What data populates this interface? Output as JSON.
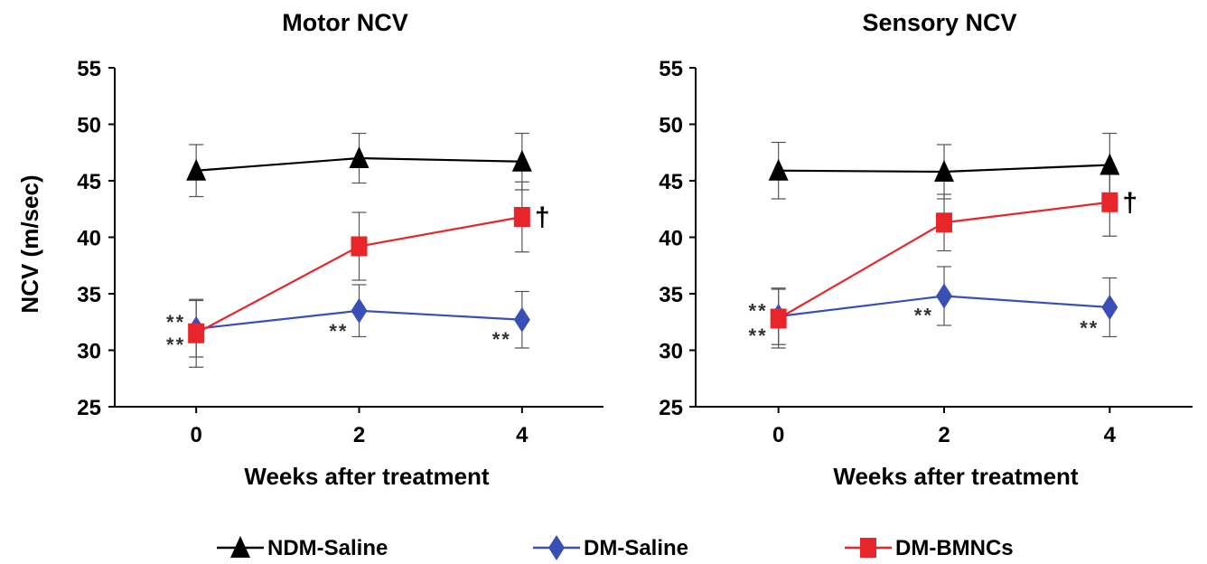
{
  "chart_data": [
    {
      "type": "line",
      "title": "Motor NCV",
      "xlabel": "Weeks after treatment",
      "ylabel": "NCV (m/sec)",
      "x": [
        0,
        2,
        4
      ],
      "xlim": [
        -1,
        5
      ],
      "ylim": [
        25,
        55
      ],
      "yticks": [
        25,
        30,
        35,
        40,
        45,
        50,
        55
      ],
      "xticks": [
        0,
        2,
        4
      ],
      "series": [
        {
          "name": "NDM-Saline",
          "color": "#000000",
          "marker": "triangle",
          "values": [
            45.9,
            47.0,
            46.7
          ],
          "error": [
            2.3,
            2.2,
            2.5
          ]
        },
        {
          "name": "DM-Saline",
          "color": "#3a4fb5",
          "marker": "diamond",
          "values": [
            31.9,
            33.5,
            32.7
          ],
          "error": [
            2.5,
            2.3,
            2.5
          ]
        },
        {
          "name": "DM-BMNCs",
          "color": "#e8252a",
          "marker": "square",
          "values": [
            31.5,
            39.2,
            41.8
          ],
          "error": [
            3.0,
            3.0,
            3.1
          ]
        }
      ],
      "annotations": [
        {
          "text": "**",
          "x": 0,
          "y": 33.0
        },
        {
          "text": "**",
          "x": 0,
          "y": 31.0
        },
        {
          "text": "**",
          "x": 2,
          "y": 32.2
        },
        {
          "text": "**",
          "x": 4,
          "y": 31.5
        },
        {
          "text": "†",
          "x": 4,
          "y": 41.8
        }
      ]
    },
    {
      "type": "line",
      "title": "Sensory NCV",
      "xlabel": "Weeks after treatment",
      "ylabel": "",
      "x": [
        0,
        2,
        4
      ],
      "xlim": [
        -1,
        5
      ],
      "ylim": [
        25,
        55
      ],
      "yticks": [
        25,
        30,
        35,
        40,
        45,
        50,
        55
      ],
      "xticks": [
        0,
        2,
        4
      ],
      "series": [
        {
          "name": "NDM-Saline",
          "color": "#000000",
          "marker": "triangle",
          "values": [
            45.9,
            45.8,
            46.4
          ],
          "error": [
            2.5,
            2.4,
            2.8
          ]
        },
        {
          "name": "DM-Saline",
          "color": "#3a4fb5",
          "marker": "diamond",
          "values": [
            33.0,
            34.8,
            33.8
          ],
          "error": [
            2.5,
            2.6,
            2.6
          ]
        },
        {
          "name": "DM-BMNCs",
          "color": "#e8252a",
          "marker": "square",
          "values": [
            32.8,
            41.3,
            43.1
          ],
          "error": [
            2.6,
            2.5,
            3.0
          ]
        }
      ],
      "annotations": [
        {
          "text": "**",
          "x": 0,
          "y": 34.0
        },
        {
          "text": "**",
          "x": 0,
          "y": 31.8
        },
        {
          "text": "**",
          "x": 2,
          "y": 33.6
        },
        {
          "text": "**",
          "x": 4,
          "y": 32.5
        },
        {
          "text": "†",
          "x": 4,
          "y": 43.1
        }
      ]
    }
  ],
  "legend": [
    {
      "label": "NDM-Saline",
      "color": "#000000",
      "marker": "triangle"
    },
    {
      "label": "DM-Saline",
      "color": "#3a4fb5",
      "marker": "diamond"
    },
    {
      "label": "DM-BMNCs",
      "color": "#e8252a",
      "marker": "square"
    }
  ]
}
